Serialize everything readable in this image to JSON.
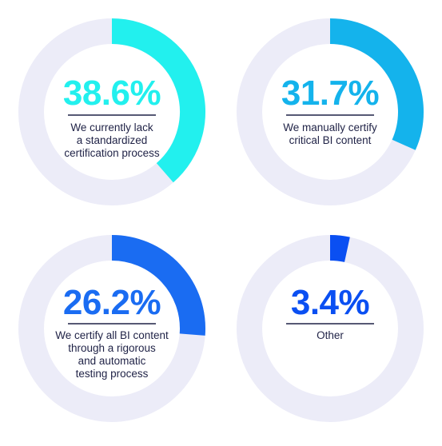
{
  "chart_data": {
    "type": "pie",
    "title": "",
    "charts": [
      {
        "value": 38.6,
        "value_label": "38.6%",
        "label_lines": [
          "We currently lack",
          "a standardized",
          "certification process"
        ],
        "color": "#22f0ee"
      },
      {
        "value": 31.7,
        "value_label": "31.7%",
        "label_lines": [
          "We manually certify",
          "critical BI content"
        ],
        "color": "#14b3ec"
      },
      {
        "value": 26.2,
        "value_label": "26.2%",
        "label_lines": [
          "We certify all BI content",
          "through a rigorous",
          "and automatic",
          "testing process"
        ],
        "color": "#1a6cf2"
      },
      {
        "value": 3.4,
        "value_label": "3.4%",
        "label_lines": [
          "Other"
        ],
        "color": "#0a4ff2"
      }
    ]
  },
  "colors": {
    "track": "#ececf8",
    "divider": "#1f2246"
  }
}
